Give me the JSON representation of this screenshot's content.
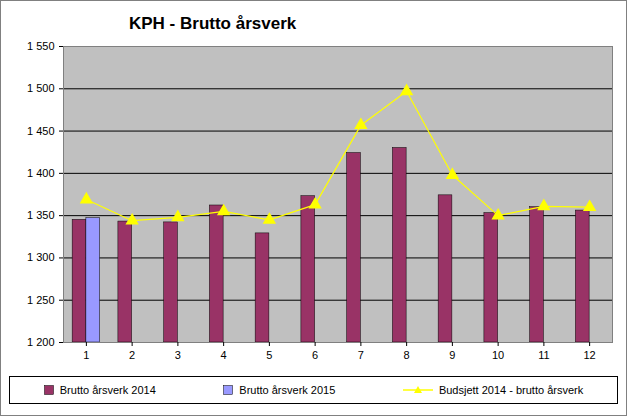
{
  "chart_data": {
    "type": "bar",
    "title": "KPH - Brutto årsverk",
    "categories": [
      1,
      2,
      3,
      4,
      5,
      6,
      7,
      8,
      9,
      10,
      11,
      12
    ],
    "series": [
      {
        "name": "Brutto årsverk 2014",
        "type": "bar",
        "color": "#993366",
        "values": [
          1345,
          1343,
          1342,
          1362,
          1329,
          1373,
          1424,
          1430,
          1374,
          1353,
          1360,
          1356
        ]
      },
      {
        "name": "Brutto årsverk 2015",
        "type": "bar",
        "color": "#9999ff",
        "values": [
          1347,
          null,
          null,
          null,
          null,
          null,
          null,
          null,
          null,
          null,
          null,
          null
        ]
      },
      {
        "name": "Budsjett 2014 - brutto årsverk",
        "type": "line",
        "color": "#ffff00",
        "marker": "triangle",
        "values": [
          1369,
          1344,
          1348,
          1355,
          1345,
          1363,
          1457,
          1497,
          1398,
          1350,
          1361,
          1360
        ]
      }
    ],
    "ylim": [
      1200,
      1550
    ],
    "yticks": [
      {
        "value": 1200,
        "label": "1 200"
      },
      {
        "value": 1250,
        "label": "1 250"
      },
      {
        "value": 1300,
        "label": "1 300"
      },
      {
        "value": 1350,
        "label": "1 350"
      },
      {
        "value": 1400,
        "label": "1 400"
      },
      {
        "value": 1450,
        "label": "1 450"
      },
      {
        "value": 1500,
        "label": "1 500"
      },
      {
        "value": 1550,
        "label": "1 550"
      }
    ],
    "grid": true,
    "legend": "bottom"
  }
}
